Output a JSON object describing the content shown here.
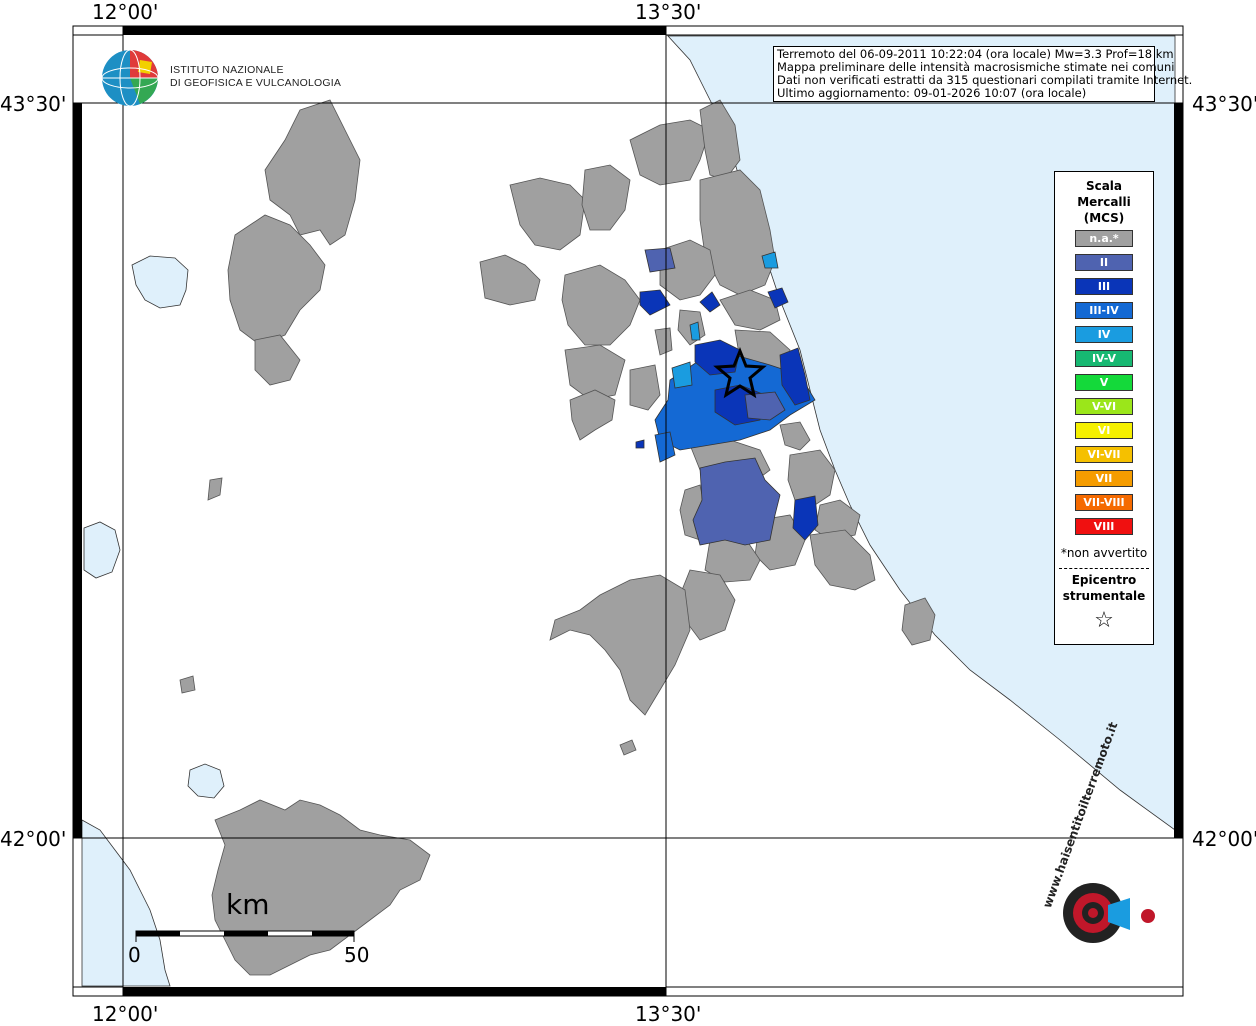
{
  "axes": {
    "top": [
      "12°00'",
      "13°30'"
    ],
    "bottom": [
      "12°00'",
      "13°30'"
    ],
    "left": [
      "43°30'",
      "42°00'"
    ],
    "right": [
      "43°30'",
      "42°00'"
    ]
  },
  "info": {
    "line1": "Terremoto del 06-09-2011 10:22:04 (ora locale) Mw=3.3 Prof=18 km",
    "line2": "Mappa preliminare delle intensità macrosismiche stimate nei comuni",
    "line3": "Dati non verificati estratti da 315 questionari compilati tramite Internet.",
    "line4": "Ultimo aggiornamento: 09-01-2026 10:07 (ora locale)"
  },
  "logo": {
    "line1": "ISTITUTO NAZIONALE",
    "line2": "DI GEOFISICA E VULCANOLOGIA"
  },
  "legend": {
    "title1": "Scala",
    "title2": "Mercalli",
    "title3": "(MCS)",
    "items": [
      {
        "label": "n.a.*",
        "color": "#a0a0a0"
      },
      {
        "label": "II",
        "color": "#4f63b0"
      },
      {
        "label": "III",
        "color": "#0a35b8"
      },
      {
        "label": "III-IV",
        "color": "#1469d4"
      },
      {
        "label": "IV",
        "color": "#1a9ce0"
      },
      {
        "label": "IV-V",
        "color": "#17b872"
      },
      {
        "label": "V",
        "color": "#14d93a"
      },
      {
        "label": "V-VI",
        "color": "#9be61a"
      },
      {
        "label": "VI",
        "color": "#f5f000"
      },
      {
        "label": "VI-VII",
        "color": "#f5c000"
      },
      {
        "label": "VII",
        "color": "#f59c00"
      },
      {
        "label": "VII-VIII",
        "color": "#f56a00"
      },
      {
        "label": "VIII",
        "color": "#f01010"
      }
    ],
    "note": "*non avvertito",
    "epi1": "Epicentro",
    "epi2": "strumentale",
    "star": "☆"
  },
  "scale": {
    "unit": "km",
    "start": "0",
    "end": "50"
  },
  "watermark": "www.haisentitoilterremoto.it",
  "colors": {
    "sea": "#dff0fb",
    "land": "#ffffff",
    "na": "#a0a0a0",
    "grid": "#000000"
  }
}
